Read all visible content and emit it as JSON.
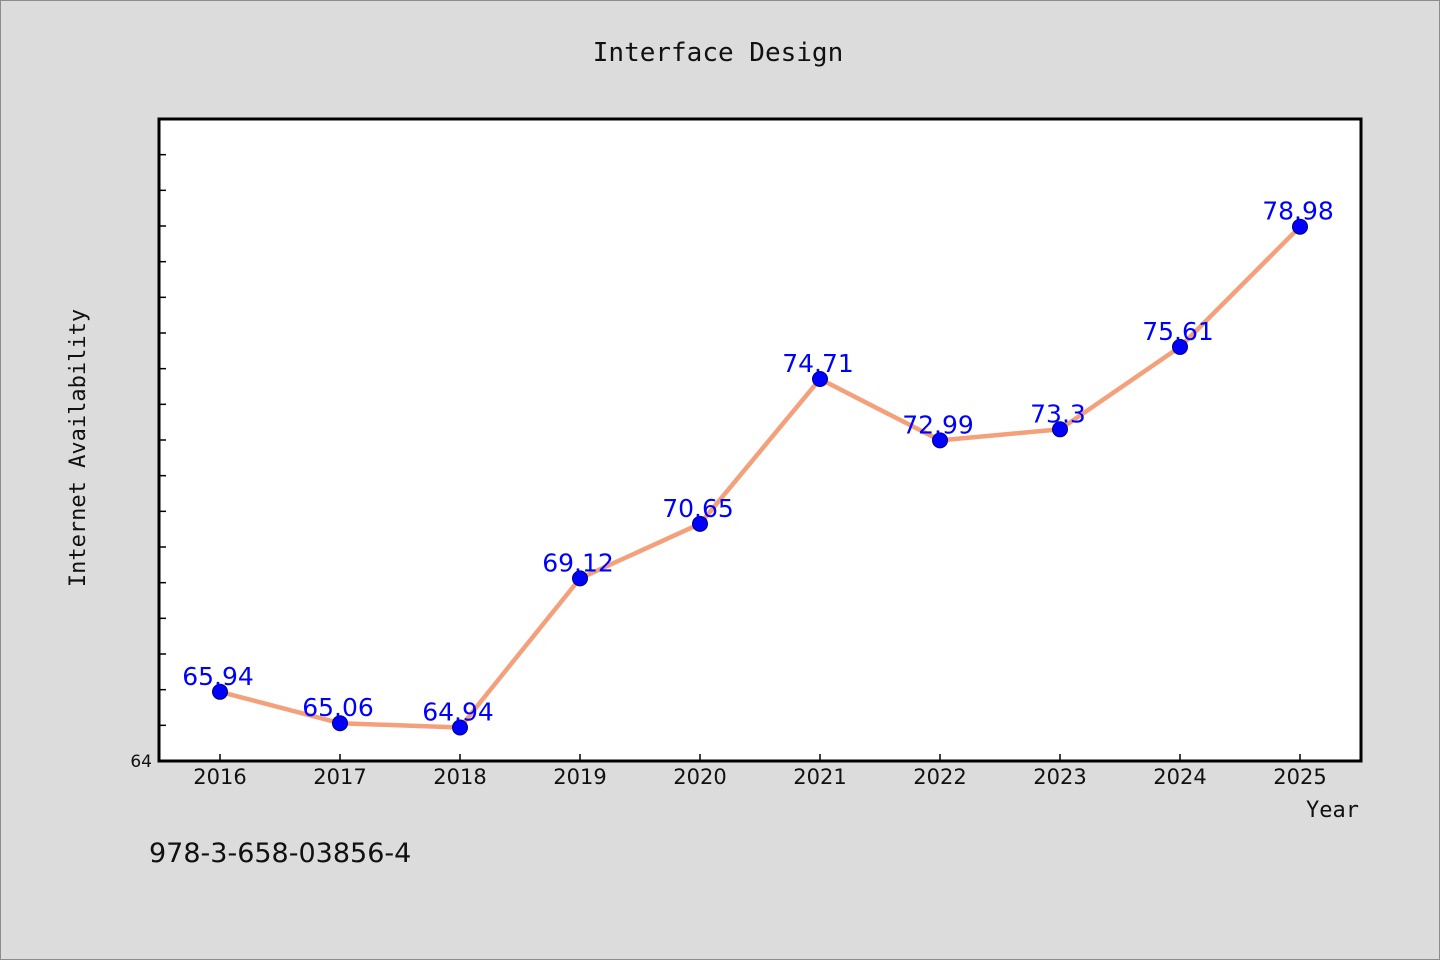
{
  "chart_data": {
    "type": "line",
    "title": "Interface Design",
    "xlabel": "Year",
    "ylabel": "Internet Availability",
    "categories": [
      "2016",
      "2017",
      "2018",
      "2019",
      "2020",
      "2021",
      "2022",
      "2023",
      "2024",
      "2025"
    ],
    "series": [
      {
        "values": [
          65.94,
          65.06,
          64.94,
          69.12,
          70.65,
          74.71,
          72.99,
          73.3,
          75.61,
          78.98
        ],
        "labels": [
          "65.94",
          "65.06",
          "64.94",
          "69.12",
          "70.65",
          "74.71",
          "72.99",
          "73.3",
          "75.61",
          "78.98"
        ]
      }
    ],
    "ylim": [
      64,
      82
    ],
    "y_tick_labels": [
      {
        "value": 64,
        "label": "64"
      }
    ],
    "y_minor_tick_step": 1,
    "grid": false,
    "colors": {
      "line": "#f4a07a",
      "marker": "#0000ff",
      "data_label": "#0000ff",
      "page_background": "#dcdcdc",
      "plot_background": "#ffffff"
    }
  },
  "footer": {
    "isbn": "978-3-658-03856-4"
  }
}
